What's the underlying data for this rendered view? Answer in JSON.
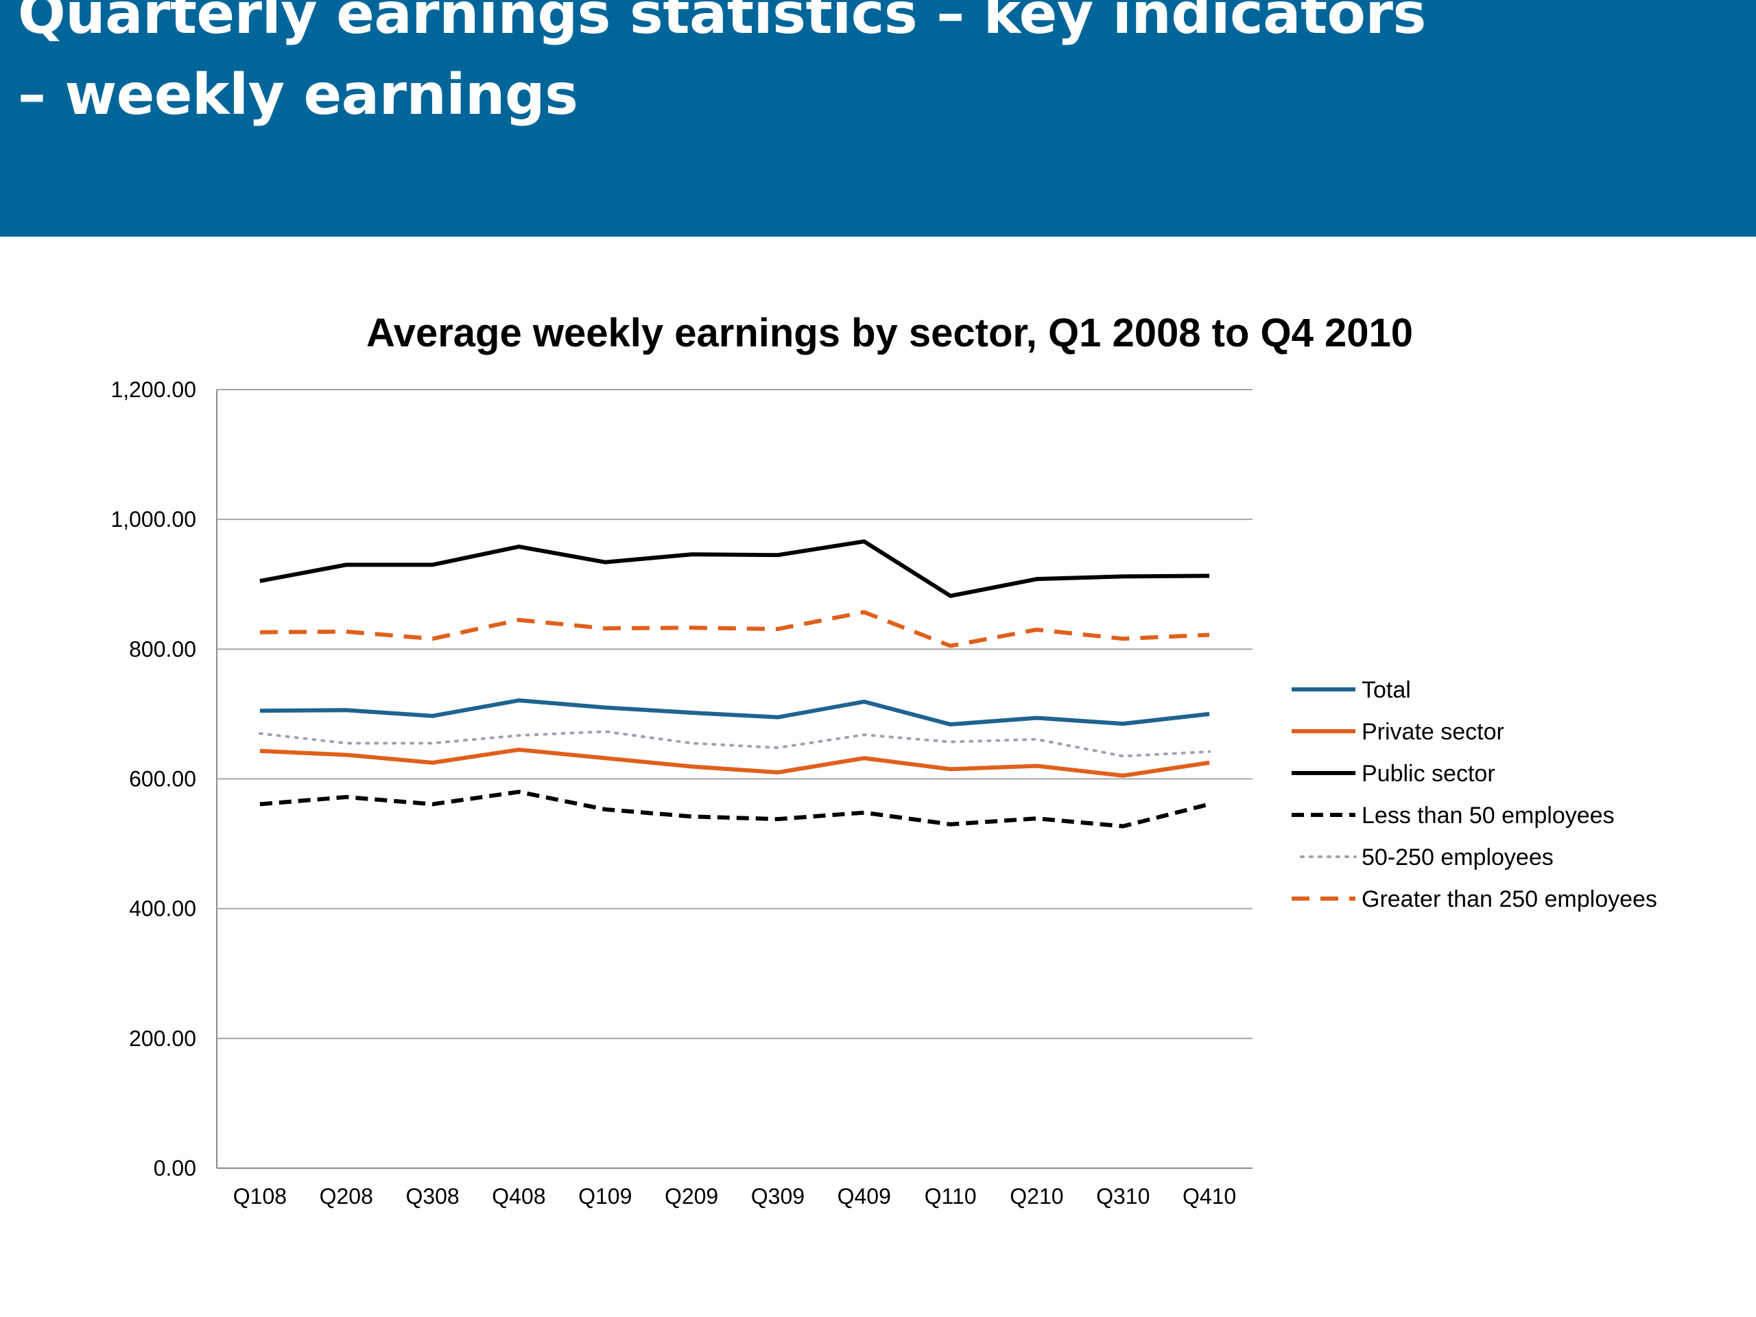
{
  "slide": {
    "title_line1": "Quarterly earnings statistics – key indicators",
    "title_line2": "– weekly earnings",
    "header_color": "#006699"
  },
  "chart_data": {
    "type": "line",
    "title": "Average weekly earnings by sector, Q1 2008 to Q4 2010",
    "xlabel": "",
    "ylabel": "",
    "ylim": [
      0,
      1200
    ],
    "yticks": [
      0,
      200,
      400,
      600,
      800,
      1000,
      1200
    ],
    "ytick_labels": [
      "0.00",
      "200.00",
      "400.00",
      "600.00",
      "800.00",
      "1,000.00",
      "1,200.00"
    ],
    "grid": true,
    "legend_position": "right",
    "categories": [
      "Q108",
      "Q208",
      "Q308",
      "Q408",
      "Q109",
      "Q209",
      "Q309",
      "Q409",
      "Q110",
      "Q210",
      "Q310",
      "Q410"
    ],
    "series": [
      {
        "name": "Total",
        "color": "#1f6391",
        "style": "solid",
        "values": [
          705,
          706,
          697,
          721,
          710,
          702,
          695,
          719,
          684,
          694,
          685,
          700
        ]
      },
      {
        "name": "Private sector",
        "color": "#e0601b",
        "style": "solid",
        "values": [
          643,
          637,
          625,
          645,
          632,
          619,
          610,
          632,
          615,
          620,
          605,
          625
        ]
      },
      {
        "name": "Public sector",
        "color": "#000000",
        "style": "solid",
        "values": [
          905,
          930,
          930,
          958,
          934,
          946,
          945,
          966,
          882,
          908,
          912,
          913
        ]
      },
      {
        "name": "Less than 50 employees",
        "color": "#000000",
        "style": "dash",
        "values": [
          561,
          572,
          561,
          580,
          553,
          542,
          538,
          548,
          530,
          539,
          527,
          561
        ]
      },
      {
        "name": "50-250 employees",
        "color": "#9aa3b2",
        "style": "dot",
        "values": [
          670,
          655,
          655,
          667,
          673,
          655,
          648,
          668,
          657,
          661,
          635,
          642
        ]
      },
      {
        "name": "Greater than 250 employees",
        "color": "#e0601b",
        "style": "longdash",
        "values": [
          826,
          827,
          816,
          845,
          832,
          833,
          831,
          857,
          805,
          830,
          816,
          822
        ]
      }
    ]
  }
}
